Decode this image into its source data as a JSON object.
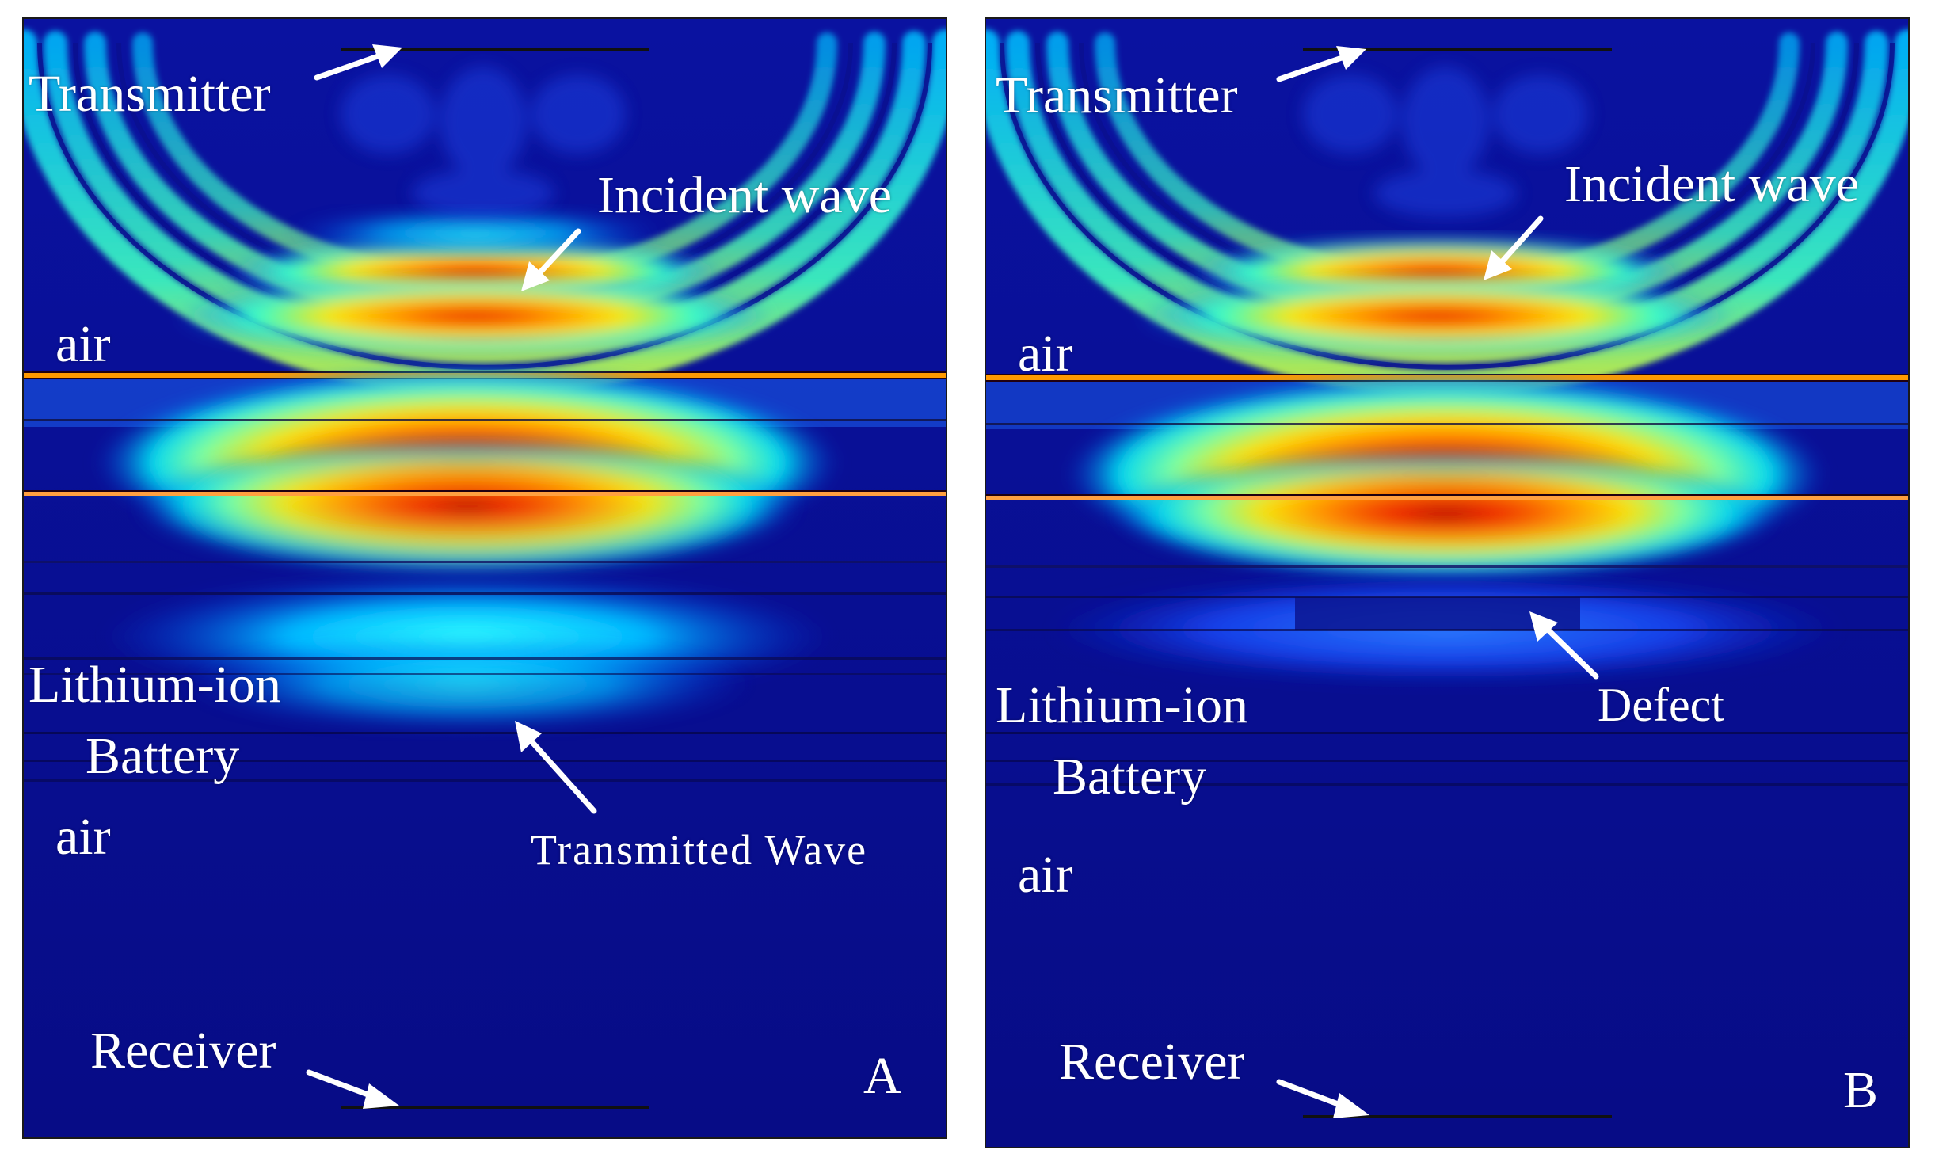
{
  "panels": [
    {
      "id": "A",
      "letter": "A",
      "labels": {
        "transmitter": "Transmitter",
        "incident_wave": "Incident wave",
        "air_top": "air",
        "battery_line1": "Lithium-ion",
        "battery_line2": "Battery",
        "air_bottom": "air",
        "transmitted_wave": "Transmitted Wave",
        "receiver": "Receiver"
      }
    },
    {
      "id": "B",
      "letter": "B",
      "labels": {
        "transmitter": "Transmitter",
        "incident_wave": "Incident wave",
        "air_top": "air",
        "defect": "Defect",
        "battery_line1": "Lithium-ion",
        "battery_line2": "Battery",
        "air_bottom": "air",
        "receiver": "Receiver"
      }
    }
  ],
  "colors": {
    "background_field": "#0a0f8e",
    "annotation": "#ffffff",
    "hot": "#d40000",
    "warm": "#ffd200",
    "cool": "#00e0f0"
  }
}
